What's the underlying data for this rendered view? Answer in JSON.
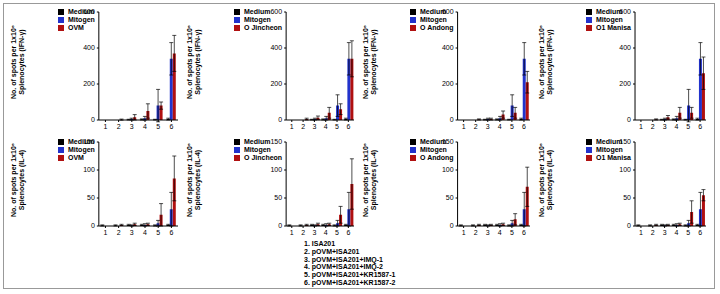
{
  "chart_data": [
    {
      "type": "bar",
      "y_label": "No. of spots per 1x10⁶\nSplenocytes (IFN-γ)",
      "categories": [
        "1",
        "2",
        "3",
        "4",
        "5",
        "6"
      ],
      "ylim": [
        0,
        600
      ],
      "yticks": [
        0,
        200,
        400,
        600
      ],
      "legend": "upper left",
      "series": [
        {
          "name": "Medium",
          "color": "#000000",
          "values": [
            0,
            0,
            2,
            3,
            2,
            5
          ],
          "errors": [
            0,
            0,
            2,
            3,
            2,
            5
          ]
        },
        {
          "name": "Mitogen",
          "color": "#2233cc",
          "values": [
            0,
            0,
            5,
            10,
            80,
            340
          ],
          "errors": [
            0,
            0,
            5,
            10,
            90,
            90
          ]
        },
        {
          "name": "OVM",
          "color": "#b01010",
          "values": [
            0,
            2,
            15,
            50,
            80,
            370
          ],
          "errors": [
            0,
            3,
            15,
            40,
            20,
            100
          ]
        }
      ]
    },
    {
      "type": "bar",
      "y_label": "No. of spots per 1x10⁶\nSplenocytes (IFN-γ)",
      "categories": [
        "1",
        "2",
        "3",
        "4",
        "5",
        "6"
      ],
      "ylim": [
        0,
        600
      ],
      "yticks": [
        0,
        200,
        400,
        600
      ],
      "legend": "upper left",
      "series": [
        {
          "name": "Medium",
          "color": "#000000",
          "values": [
            0,
            0,
            2,
            3,
            2,
            5
          ],
          "errors": [
            0,
            0,
            2,
            3,
            2,
            5
          ]
        },
        {
          "name": "Mitogen",
          "color": "#2233cc",
          "values": [
            0,
            0,
            5,
            10,
            80,
            340
          ],
          "errors": [
            0,
            0,
            5,
            10,
            60,
            90
          ]
        },
        {
          "name": "O Jincheon",
          "color": "#b01010",
          "values": [
            0,
            5,
            12,
            40,
            60,
            340
          ],
          "errors": [
            0,
            5,
            10,
            30,
            30,
            100
          ]
        }
      ]
    },
    {
      "type": "bar",
      "y_label": "No. of spots per 1x10⁶\nSplenocytes (IFN-γ)",
      "categories": [
        "1",
        "2",
        "3",
        "4",
        "5",
        "6"
      ],
      "ylim": [
        0,
        600
      ],
      "yticks": [
        0,
        200,
        400,
        600
      ],
      "legend": "upper left",
      "series": [
        {
          "name": "Medium",
          "color": "#000000",
          "values": [
            0,
            0,
            2,
            3,
            2,
            5
          ],
          "errors": [
            0,
            0,
            2,
            3,
            2,
            5
          ]
        },
        {
          "name": "Mitogen",
          "color": "#2233cc",
          "values": [
            0,
            0,
            5,
            10,
            80,
            340
          ],
          "errors": [
            0,
            0,
            5,
            10,
            60,
            90
          ]
        },
        {
          "name": "O Andong",
          "color": "#b01010",
          "values": [
            0,
            3,
            5,
            30,
            40,
            210
          ],
          "errors": [
            0,
            3,
            5,
            20,
            30,
            60
          ]
        }
      ]
    },
    {
      "type": "bar",
      "y_label": "No. of spots per 1x10⁶\nSplenocytes (IFN-γ)",
      "categories": [
        "1",
        "2",
        "3",
        "4",
        "5",
        "6"
      ],
      "ylim": [
        0,
        600
      ],
      "yticks": [
        0,
        200,
        400,
        600
      ],
      "legend": "upper left",
      "series": [
        {
          "name": "Medium",
          "color": "#000000",
          "values": [
            0,
            0,
            2,
            3,
            2,
            5
          ],
          "errors": [
            0,
            0,
            2,
            3,
            2,
            5
          ]
        },
        {
          "name": "Mitogen",
          "color": "#2233cc",
          "values": [
            0,
            0,
            5,
            10,
            80,
            340
          ],
          "errors": [
            0,
            0,
            5,
            10,
            90,
            90
          ]
        },
        {
          "name": "O1 Manisa",
          "color": "#b01010",
          "values": [
            0,
            3,
            15,
            40,
            40,
            260
          ],
          "errors": [
            0,
            3,
            10,
            30,
            30,
            90
          ]
        }
      ]
    },
    {
      "type": "bar",
      "y_label": "No. of spots per 1x10⁶\nSplenocytes (IL-4)",
      "categories": [
        "1",
        "2",
        "3",
        "4",
        "5",
        "6"
      ],
      "ylim": [
        0,
        150
      ],
      "yticks": [
        0,
        50,
        100,
        150
      ],
      "legend": "upper left",
      "series": [
        {
          "name": "Medium",
          "color": "#000000",
          "values": [
            1,
            1,
            2,
            2,
            1,
            2
          ],
          "errors": [
            1,
            1,
            1,
            1,
            1,
            1
          ]
        },
        {
          "name": "Mitogen",
          "color": "#2233cc",
          "values": [
            0,
            0,
            1,
            2,
            5,
            30
          ],
          "errors": [
            0,
            0,
            1,
            2,
            5,
            30
          ]
        },
        {
          "name": "OVM",
          "color": "#b01010",
          "values": [
            0,
            2,
            3,
            3,
            20,
            85
          ],
          "errors": [
            0,
            1,
            2,
            2,
            20,
            40
          ]
        }
      ]
    },
    {
      "type": "bar",
      "y_label": "No. of spots per 1x10⁶\nSplenocytes (IL-4)",
      "categories": [
        "1",
        "2",
        "3",
        "4",
        "5",
        "6"
      ],
      "ylim": [
        0,
        150
      ],
      "yticks": [
        0,
        50,
        100,
        150
      ],
      "legend": "upper left",
      "series": [
        {
          "name": "Medium",
          "color": "#000000",
          "values": [
            1,
            1,
            2,
            2,
            1,
            2
          ],
          "errors": [
            1,
            1,
            1,
            1,
            1,
            1
          ]
        },
        {
          "name": "Mitogen",
          "color": "#2233cc",
          "values": [
            0,
            0,
            1,
            2,
            5,
            30
          ],
          "errors": [
            0,
            0,
            1,
            2,
            5,
            30
          ]
        },
        {
          "name": "O Jincheon",
          "color": "#b01010",
          "values": [
            0,
            2,
            3,
            3,
            20,
            75
          ],
          "errors": [
            0,
            1,
            2,
            2,
            15,
            45
          ]
        }
      ]
    },
    {
      "type": "bar",
      "y_label": "No. of spots per 1x10⁶\nSplenocytes (IL-4)",
      "categories": [
        "1",
        "2",
        "3",
        "4",
        "5",
        "6"
      ],
      "ylim": [
        0,
        150
      ],
      "yticks": [
        0,
        50,
        100,
        150
      ],
      "legend": "upper left",
      "series": [
        {
          "name": "Medium",
          "color": "#000000",
          "values": [
            1,
            1,
            2,
            2,
            1,
            2
          ],
          "errors": [
            1,
            1,
            1,
            1,
            1,
            1
          ]
        },
        {
          "name": "Mitogen",
          "color": "#2233cc",
          "values": [
            0,
            0,
            1,
            2,
            5,
            30
          ],
          "errors": [
            0,
            0,
            1,
            2,
            5,
            30
          ]
        },
        {
          "name": "O Andong",
          "color": "#b01010",
          "values": [
            0,
            2,
            2,
            3,
            12,
            70
          ],
          "errors": [
            0,
            1,
            1,
            2,
            10,
            35
          ]
        }
      ]
    },
    {
      "type": "bar",
      "y_label": "No. of spots per 1x10⁶\nSplenocytes (IL-4)",
      "categories": [
        "1",
        "2",
        "3",
        "4",
        "5",
        "6"
      ],
      "ylim": [
        0,
        150
      ],
      "yticks": [
        0,
        50,
        100,
        150
      ],
      "legend": "upper left",
      "series": [
        {
          "name": "Medium",
          "color": "#000000",
          "values": [
            1,
            1,
            2,
            2,
            1,
            2
          ],
          "errors": [
            1,
            1,
            1,
            1,
            1,
            1
          ]
        },
        {
          "name": "Mitogen",
          "color": "#2233cc",
          "values": [
            0,
            0,
            1,
            2,
            5,
            30
          ],
          "errors": [
            0,
            0,
            1,
            2,
            5,
            30
          ]
        },
        {
          "name": "O1 Manisa",
          "color": "#b01010",
          "values": [
            0,
            2,
            2,
            3,
            25,
            55
          ],
          "errors": [
            0,
            1,
            1,
            2,
            20,
            10
          ]
        }
      ]
    }
  ],
  "annotations": [
    "1. ISA201",
    "2. pOVM+ISA201",
    "3. pOVM+ISA201+IMQ-1",
    "4. pOVM+ISA201+IMQ-2",
    "5. pOVM+ISA201+KR1587-1",
    "6. pOVM+ISA201+KR1587-2"
  ]
}
